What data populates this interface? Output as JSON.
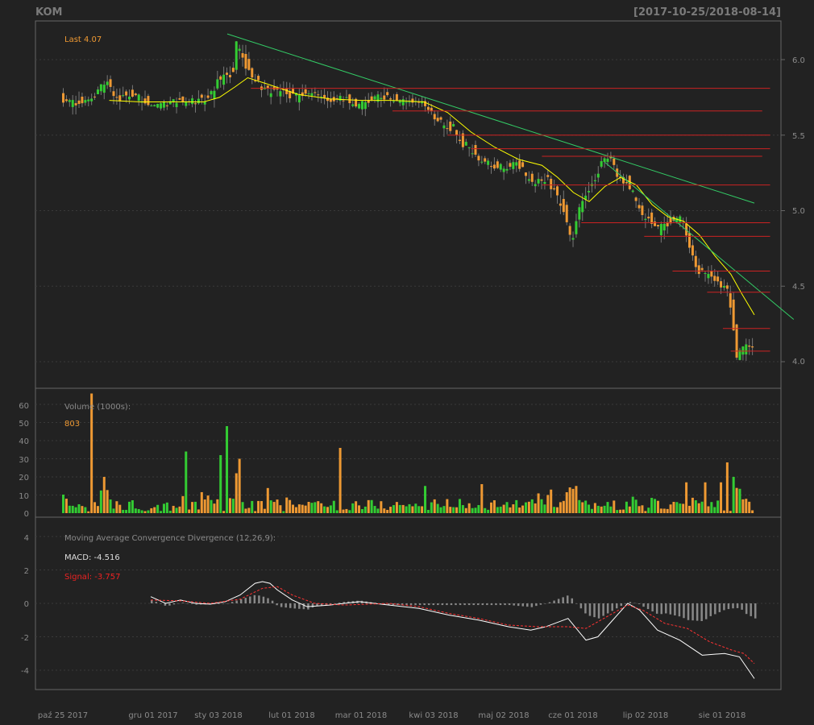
{
  "header": {
    "symbol": "KOM",
    "date_range": "[2017-10-25/2018-08-14]"
  },
  "price_panel": {
    "last_label": "Last 4.07",
    "y_ticks": [
      "6.0",
      "5.5",
      "5.0",
      "4.5",
      "4.0"
    ]
  },
  "volume_panel": {
    "title": "Volume (1000s):",
    "last_value": "803",
    "y_ticks": [
      "60",
      "50",
      "40",
      "30",
      "20",
      "10",
      "0"
    ]
  },
  "macd_panel": {
    "title": "Moving Average Convergence Divergence (12,26,9):",
    "macd_label": "MACD: -4.516",
    "signal_label": "Signal: -3.757",
    "y_ticks": [
      "4",
      "2",
      "0",
      "-2",
      "-4"
    ]
  },
  "x_axis": {
    "labels": [
      "paź 25 2017",
      "gru 01 2017",
      "sty 03 2018",
      "lut 01 2018",
      "mar 01 2018",
      "kwi 03 2018",
      "maj 02 2018",
      "cze 01 2018",
      "lip 02 2018",
      "sie 01 2018"
    ]
  },
  "colors": {
    "background": "#222222",
    "up": "#33cc33",
    "down": "#ee9933",
    "sma": "#ffff00",
    "trendline": "#33cc66",
    "support_lines": "#cc2222",
    "macd_line": "#ffffff",
    "signal_line": "#ff3333",
    "histogram": "#888888",
    "axis_text": "#8a8a8a"
  },
  "chart_data": {
    "type": "candlestick",
    "title": "KOM",
    "date_range": "2017-10-25/2018-08-14",
    "last_price": 4.07,
    "price_ylim": [
      3.85,
      6.25
    ],
    "close_path": [
      [
        0,
        5.74
      ],
      [
        10,
        5.7
      ],
      [
        20,
        5.75
      ],
      [
        25,
        5.82
      ],
      [
        30,
        5.85
      ],
      [
        35,
        5.72
      ],
      [
        45,
        5.78
      ],
      [
        55,
        5.72
      ],
      [
        60,
        5.72
      ],
      [
        70,
        5.72
      ],
      [
        75,
        5.74
      ],
      [
        85,
        5.72
      ],
      [
        95,
        5.75
      ],
      [
        100,
        5.85
      ],
      [
        110,
        5.92
      ],
      [
        112,
        6.1
      ],
      [
        115,
        6.02
      ],
      [
        120,
        5.92
      ],
      [
        130,
        5.8
      ],
      [
        140,
        5.78
      ],
      [
        150,
        5.76
      ],
      [
        160,
        5.78
      ],
      [
        170,
        5.72
      ],
      [
        180,
        5.75
      ],
      [
        190,
        5.7
      ],
      [
        200,
        5.75
      ],
      [
        210,
        5.75
      ],
      [
        220,
        5.72
      ],
      [
        230,
        5.72
      ],
      [
        240,
        5.6
      ],
      [
        245,
        5.55
      ],
      [
        250,
        5.55
      ],
      [
        255,
        5.45
      ],
      [
        260,
        5.42
      ],
      [
        265,
        5.35
      ],
      [
        275,
        5.3
      ],
      [
        285,
        5.28
      ],
      [
        290,
        5.33
      ],
      [
        300,
        5.18
      ],
      [
        310,
        5.2
      ],
      [
        315,
        5.1
      ],
      [
        320,
        5.0
      ],
      [
        325,
        4.78
      ],
      [
        330,
        5.0
      ],
      [
        340,
        5.2
      ],
      [
        345,
        5.35
      ],
      [
        350,
        5.35
      ],
      [
        355,
        5.2
      ],
      [
        360,
        5.2
      ],
      [
        365,
        5.1
      ],
      [
        370,
        4.95
      ],
      [
        375,
        4.95
      ],
      [
        380,
        4.88
      ],
      [
        385,
        4.9
      ],
      [
        390,
        4.95
      ],
      [
        395,
        4.95
      ],
      [
        400,
        4.75
      ],
      [
        405,
        4.6
      ],
      [
        410,
        4.58
      ],
      [
        415,
        4.55
      ],
      [
        420,
        4.5
      ],
      [
        425,
        4.46
      ],
      [
        428,
        4.22
      ],
      [
        430,
        4.05
      ],
      [
        435,
        4.1
      ],
      [
        440,
        4.07
      ]
    ],
    "sma_path": [
      [
        30,
        5.73
      ],
      [
        50,
        5.72
      ],
      [
        70,
        5.72
      ],
      [
        90,
        5.72
      ],
      [
        100,
        5.75
      ],
      [
        110,
        5.82
      ],
      [
        118,
        5.88
      ],
      [
        130,
        5.84
      ],
      [
        150,
        5.77
      ],
      [
        170,
        5.74
      ],
      [
        190,
        5.73
      ],
      [
        210,
        5.73
      ],
      [
        230,
        5.72
      ],
      [
        245,
        5.65
      ],
      [
        260,
        5.52
      ],
      [
        275,
        5.42
      ],
      [
        290,
        5.34
      ],
      [
        305,
        5.3
      ],
      [
        315,
        5.22
      ],
      [
        325,
        5.12
      ],
      [
        335,
        5.06
      ],
      [
        345,
        5.16
      ],
      [
        355,
        5.22
      ],
      [
        365,
        5.17
      ],
      [
        375,
        5.04
      ],
      [
        385,
        4.96
      ],
      [
        395,
        4.93
      ],
      [
        405,
        4.84
      ],
      [
        415,
        4.7
      ],
      [
        425,
        4.58
      ],
      [
        432,
        4.45
      ],
      [
        440,
        4.31
      ]
    ],
    "trendlines": [
      {
        "from": [
          105,
          6.17
        ],
        "to": [
          440,
          5.05
        ]
      },
      {
        "from": [
          345,
          5.32
        ],
        "to": [
          465,
          4.28
        ]
      }
    ],
    "support_resistance_levels": [
      {
        "price": 5.81,
        "from": 120,
        "to": 450
      },
      {
        "price": 5.66,
        "from": 210,
        "to": 445
      },
      {
        "price": 5.5,
        "from": 245,
        "to": 450
      },
      {
        "price": 5.41,
        "from": 260,
        "to": 450
      },
      {
        "price": 5.36,
        "from": 305,
        "to": 445
      },
      {
        "price": 5.17,
        "from": 305,
        "to": 450
      },
      {
        "price": 4.92,
        "from": 330,
        "to": 450
      },
      {
        "price": 4.83,
        "from": 370,
        "to": 450
      },
      {
        "price": 4.6,
        "from": 388,
        "to": 450
      },
      {
        "price": 4.46,
        "from": 410,
        "to": 450
      },
      {
        "price": 4.22,
        "from": 420,
        "to": 450
      },
      {
        "price": 4.07,
        "from": 425,
        "to": 450
      }
    ],
    "volume": {
      "unit": "1000s",
      "ylim": [
        0,
        65
      ],
      "last": 803,
      "spikes": [
        {
          "bar": 18,
          "value": 66,
          "dir": "down"
        },
        {
          "bar": 26,
          "value": 20,
          "dir": "down"
        },
        {
          "bar": 78,
          "value": 34,
          "dir": "up"
        },
        {
          "bar": 100,
          "value": 32,
          "dir": "up"
        },
        {
          "bar": 104,
          "value": 48,
          "dir": "up"
        },
        {
          "bar": 112,
          "value": 30,
          "dir": "down"
        },
        {
          "bar": 110,
          "value": 22,
          "dir": "down"
        },
        {
          "bar": 175,
          "value": 36,
          "dir": "down"
        },
        {
          "bar": 230,
          "value": 15,
          "dir": "up"
        },
        {
          "bar": 265,
          "value": 16,
          "dir": "down"
        },
        {
          "bar": 310,
          "value": 13,
          "dir": "down"
        },
        {
          "bar": 325,
          "value": 15,
          "dir": "down"
        },
        {
          "bar": 395,
          "value": 17,
          "dir": "down"
        },
        {
          "bar": 408,
          "value": 17,
          "dir": "down"
        },
        {
          "bar": 418,
          "value": 17,
          "dir": "down"
        },
        {
          "bar": 422,
          "value": 28,
          "dir": "down"
        },
        {
          "bar": 425,
          "value": 20,
          "dir": "up"
        }
      ]
    },
    "macd": {
      "ylim": [
        -5,
        5
      ],
      "macd_last": -4.516,
      "signal_last": -3.757,
      "macd_path": [
        [
          0,
          0.4
        ],
        [
          10,
          0.0
        ],
        [
          20,
          0.2
        ],
        [
          30,
          0.0
        ],
        [
          40,
          -0.05
        ],
        [
          50,
          0.1
        ],
        [
          60,
          0.5
        ],
        [
          70,
          1.2
        ],
        [
          75,
          1.3
        ],
        [
          80,
          1.2
        ],
        [
          85,
          0.8
        ],
        [
          95,
          0.2
        ],
        [
          105,
          -0.2
        ],
        [
          120,
          -0.1
        ],
        [
          140,
          0.1
        ],
        [
          160,
          -0.1
        ],
        [
          180,
          -0.3
        ],
        [
          200,
          -0.7
        ],
        [
          220,
          -1.0
        ],
        [
          240,
          -1.4
        ],
        [
          255,
          -1.6
        ],
        [
          265,
          -1.4
        ],
        [
          280,
          -0.9
        ],
        [
          292,
          -2.2
        ],
        [
          300,
          -2.0
        ],
        [
          310,
          -1.0
        ],
        [
          320,
          0.0
        ],
        [
          328,
          -0.4
        ],
        [
          340,
          -1.6
        ],
        [
          355,
          -2.2
        ],
        [
          370,
          -3.1
        ],
        [
          385,
          -3.0
        ],
        [
          395,
          -3.2
        ],
        [
          405,
          -4.5
        ]
      ],
      "signal_path": [
        [
          0,
          0.2
        ],
        [
          20,
          0.15
        ],
        [
          40,
          0.0
        ],
        [
          60,
          0.25
        ],
        [
          75,
          0.9
        ],
        [
          85,
          1.0
        ],
        [
          95,
          0.5
        ],
        [
          110,
          0.0
        ],
        [
          130,
          -0.1
        ],
        [
          160,
          0.0
        ],
        [
          180,
          -0.2
        ],
        [
          200,
          -0.6
        ],
        [
          220,
          -0.9
        ],
        [
          240,
          -1.3
        ],
        [
          260,
          -1.4
        ],
        [
          280,
          -1.4
        ],
        [
          292,
          -1.5
        ],
        [
          310,
          -0.6
        ],
        [
          320,
          -0.1
        ],
        [
          330,
          -0.4
        ],
        [
          345,
          -1.2
        ],
        [
          360,
          -1.5
        ],
        [
          375,
          -2.3
        ],
        [
          390,
          -2.8
        ],
        [
          398,
          -3.0
        ],
        [
          405,
          -3.6
        ]
      ]
    }
  }
}
